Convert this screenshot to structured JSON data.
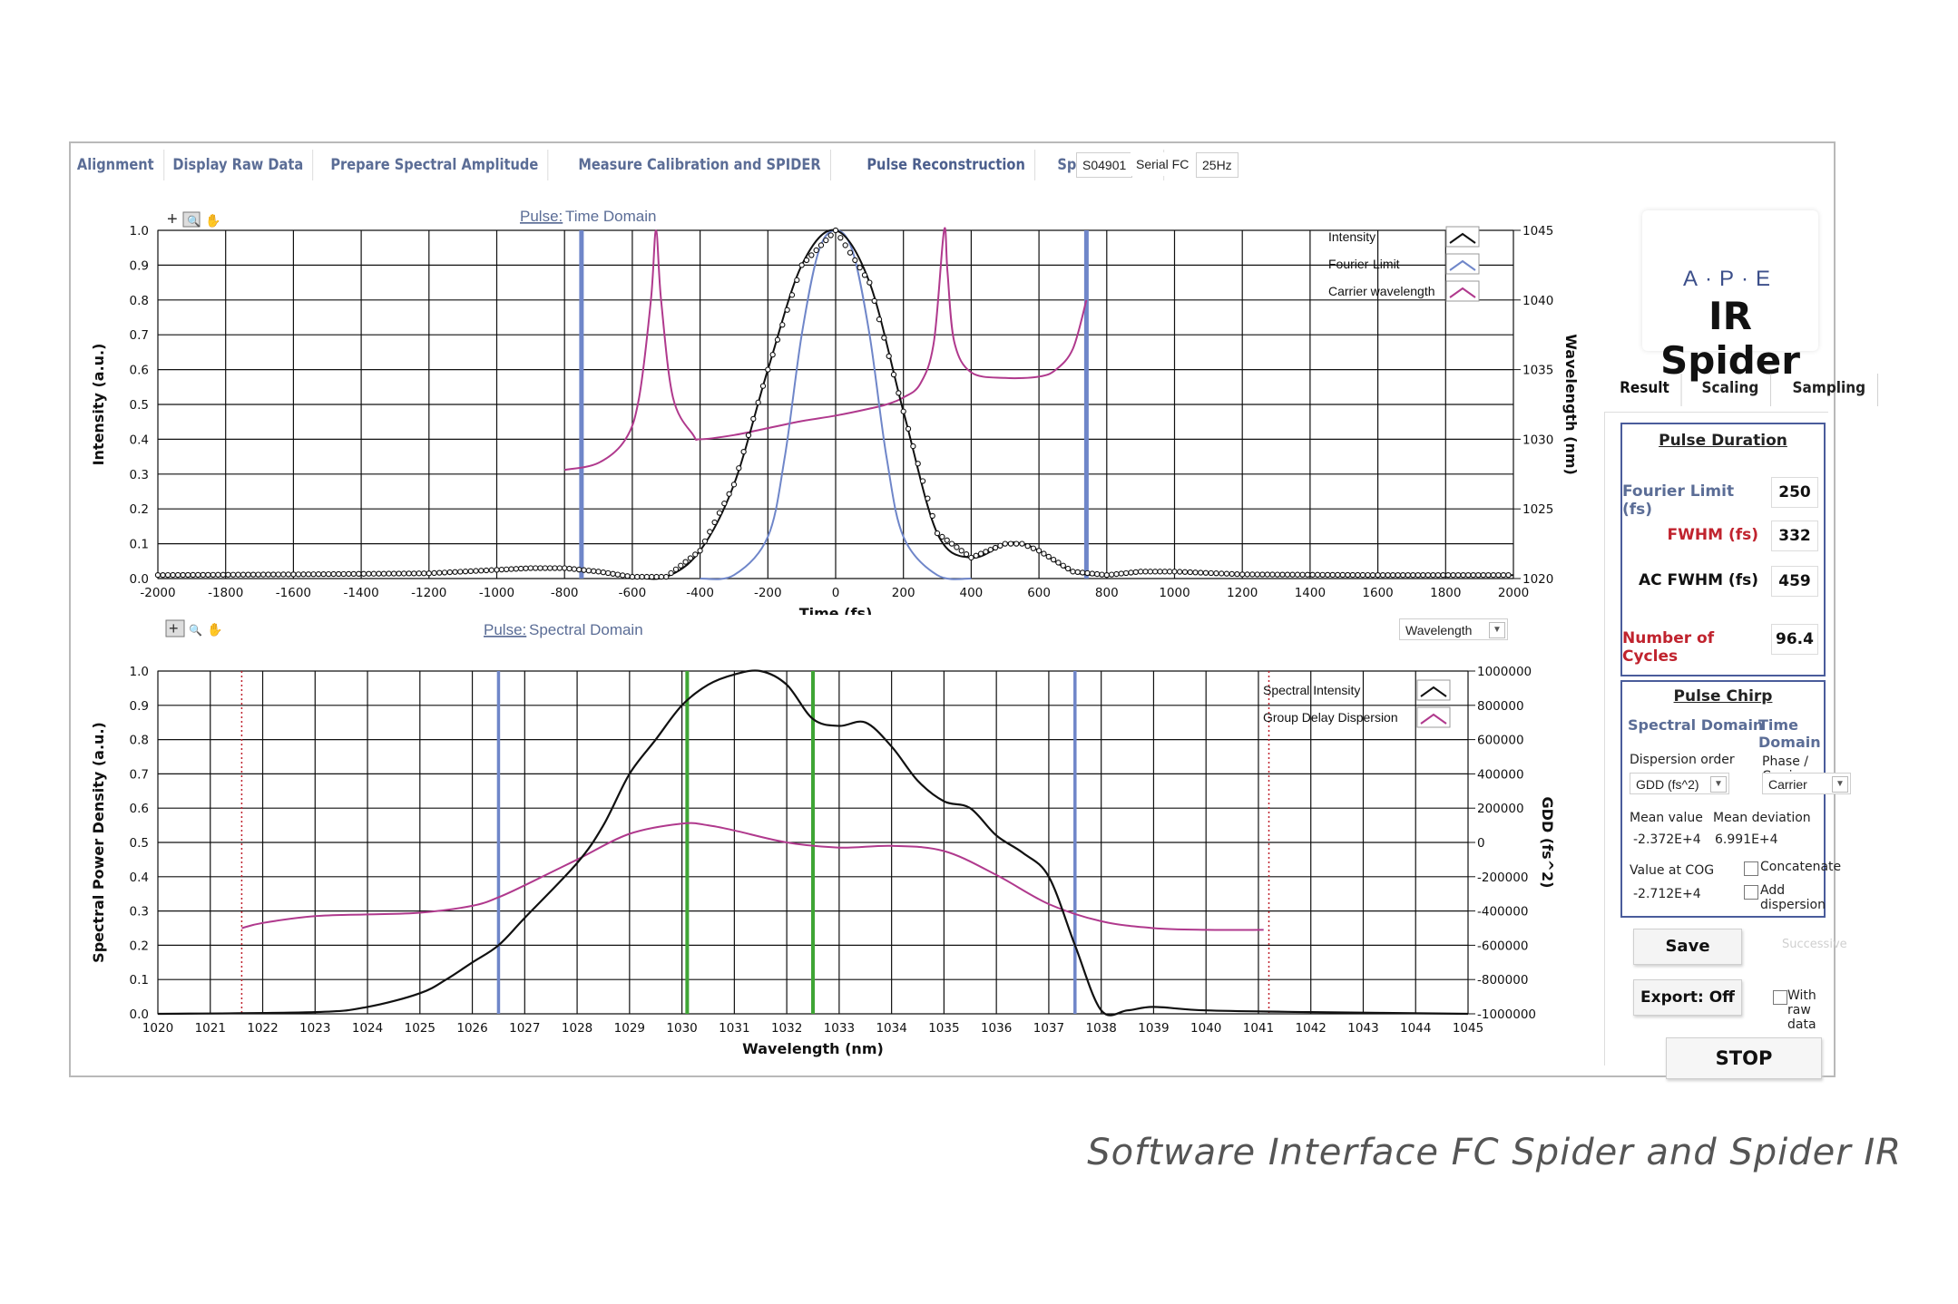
{
  "tabs": [
    "Alignment",
    "Display Raw Data",
    "Prepare Spectral Amplitude",
    "Measure Calibration and SPIDER",
    "Pulse Reconstruction",
    "Spectrogram"
  ],
  "device": {
    "serial": "S04901",
    "type": "Serial FC",
    "rate": "25Hz"
  },
  "colors": {
    "intensity": "#111111",
    "fourier": "#6f86c9",
    "carrier": "#b0398d",
    "gdd": "#b0398d",
    "green": "#3fa535",
    "blue_marker": "#6f86c9"
  },
  "chart_data": [
    {
      "type": "line",
      "title_prefix": "Pulse:",
      "title": "Time Domain",
      "xlabel": "Time (fs)",
      "ylabel": "Intensity (a.u.)",
      "y2label": "Wavelength (nm)",
      "xlim": [
        -2000,
        2000
      ],
      "ylim": [
        0,
        1.0
      ],
      "y2lim": [
        1020,
        1045
      ],
      "x_ticks": [
        -2000,
        -1800,
        -1600,
        -1400,
        -1200,
        -1000,
        -800,
        -600,
        -400,
        -200,
        0,
        200,
        400,
        600,
        800,
        1000,
        1200,
        1400,
        1600,
        1800,
        2000
      ],
      "y_ticks": [
        0.0,
        0.1,
        0.2,
        0.3,
        0.4,
        0.5,
        0.6,
        0.7,
        0.8,
        0.9,
        1.0
      ],
      "y2_ticks": [
        1020,
        1025,
        1030,
        1035,
        1040,
        1045
      ],
      "grid": true,
      "legend_position": "top-right",
      "markers_x": [
        -750,
        740
      ],
      "series": [
        {
          "name": "Intensity",
          "x": [
            -2000,
            -1600,
            -1200,
            -1000,
            -900,
            -800,
            -700,
            -600,
            -500,
            -400,
            -300,
            -200,
            -100,
            0,
            100,
            200,
            300,
            400,
            500,
            550,
            600,
            700,
            800,
            900,
            1000,
            1200,
            1600,
            2000
          ],
          "y": [
            0.01,
            0.012,
            0.015,
            0.025,
            0.03,
            0.03,
            0.02,
            0.005,
            0.005,
            0.08,
            0.27,
            0.6,
            0.9,
            1.0,
            0.85,
            0.48,
            0.13,
            0.06,
            0.1,
            0.1,
            0.08,
            0.02,
            0.01,
            0.02,
            0.02,
            0.012,
            0.01,
            0.01
          ]
        },
        {
          "name": "Fourier-Limit",
          "x": [
            -400,
            -300,
            -200,
            -150,
            -100,
            -50,
            0,
            50,
            100,
            150,
            200,
            300,
            400
          ],
          "y": [
            0.0,
            0.01,
            0.12,
            0.35,
            0.7,
            0.94,
            1.0,
            0.94,
            0.7,
            0.35,
            0.12,
            0.01,
            0.0
          ]
        },
        {
          "name": "Carrier wavelength",
          "x": [
            -800,
            -700,
            -620,
            -580,
            -545,
            -530,
            -515,
            -480,
            -420,
            -400,
            -300,
            -200,
            -100,
            0,
            100,
            150,
            200,
            250,
            290,
            320,
            330,
            350,
            400,
            500,
            600,
            650,
            700,
            740
          ],
          "y2": [
            1027.8,
            1028.3,
            1030,
            1033,
            1040,
            1045,
            1040,
            1033,
            1030.3,
            1030,
            1030.3,
            1030.8,
            1031.3,
            1031.7,
            1032.2,
            1032.5,
            1033,
            1034,
            1037,
            1045,
            1042,
            1037,
            1034.8,
            1034.4,
            1034.5,
            1035,
            1036.5,
            1040
          ]
        }
      ],
      "dropdown": "Wavelength"
    },
    {
      "type": "line",
      "title_prefix": "Pulse:",
      "title": "Spectral Domain",
      "xlabel": "Wavelength (nm)",
      "ylabel": "Spectral Power Density (a.u.)",
      "y2label": "GDD (fs^2)",
      "xlim": [
        1020,
        1045
      ],
      "ylim": [
        0,
        1.0
      ],
      "y2lim": [
        -1000000,
        1000000
      ],
      "x_ticks": [
        1020,
        1021,
        1022,
        1023,
        1024,
        1025,
        1026,
        1027,
        1028,
        1029,
        1030,
        1031,
        1032,
        1033,
        1034,
        1035,
        1036,
        1037,
        1038,
        1039,
        1040,
        1041,
        1042,
        1043,
        1044,
        1045
      ],
      "y_ticks": [
        0.0,
        0.1,
        0.2,
        0.3,
        0.4,
        0.5,
        0.6,
        0.7,
        0.8,
        0.9,
        1.0
      ],
      "y2_ticks": [
        -1000000,
        -800000,
        -600000,
        -400000,
        -200000,
        0,
        200000,
        400000,
        600000,
        800000,
        1000000
      ],
      "grid": true,
      "legend_position": "top-right",
      "markers_blue": [
        1026.5,
        1037.5
      ],
      "markers_green": [
        1030.1,
        1032.5
      ],
      "markers_dotted": [
        1021.6,
        1041.2
      ],
      "series": [
        {
          "name": "Spectral Intensity",
          "x": [
            1020,
            1023,
            1024,
            1025,
            1025.5,
            1026,
            1026.5,
            1027,
            1028,
            1028.5,
            1029,
            1029.5,
            1030,
            1030.5,
            1031,
            1031.5,
            1032,
            1032.5,
            1033,
            1033.5,
            1034,
            1034.5,
            1035,
            1035.5,
            1036,
            1036.5,
            1037,
            1037.5,
            1038,
            1038.5,
            1039,
            1040,
            1042,
            1045
          ],
          "y": [
            0.0,
            0.005,
            0.02,
            0.06,
            0.1,
            0.15,
            0.2,
            0.28,
            0.44,
            0.55,
            0.7,
            0.8,
            0.9,
            0.96,
            0.99,
            1.0,
            0.96,
            0.86,
            0.84,
            0.85,
            0.78,
            0.68,
            0.62,
            0.6,
            0.52,
            0.47,
            0.4,
            0.2,
            0.01,
            0.01,
            0.02,
            0.01,
            0.005,
            0.0
          ]
        },
        {
          "name": "Group Delay Dispersion",
          "x": [
            1021.6,
            1022,
            1023,
            1024,
            1025,
            1026,
            1026.5,
            1027,
            1028,
            1029,
            1030,
            1030.5,
            1031,
            1032,
            1033,
            1034,
            1035,
            1036,
            1037,
            1038,
            1039,
            1040,
            1041.1
          ],
          "y2": [
            -500000,
            -470000,
            -430000,
            -420000,
            -410000,
            -370000,
            -320000,
            -250000,
            -100000,
            50000,
            110000,
            100000,
            70000,
            0,
            -30000,
            -20000,
            -50000,
            -190000,
            -360000,
            -460000,
            -500000,
            -510000,
            -510000
          ]
        }
      ]
    }
  ],
  "logo": {
    "brand": "A·P·E",
    "product": "IR Spider"
  },
  "side_tabs": [
    "Result",
    "Scaling",
    "Sampling"
  ],
  "pulse_duration": {
    "title": "Pulse Duration",
    "rows": [
      {
        "label": "Fourier Limit (fs)",
        "value": "250",
        "color": "#5b6d96"
      },
      {
        "label": "FWHM (fs)",
        "value": "332",
        "color": "#c0232e"
      },
      {
        "label": "AC FWHM (fs)",
        "value": "459",
        "color": "#111111"
      },
      {
        "label": "Number of Cycles",
        "value": "96.4",
        "color": "#c0232e"
      }
    ]
  },
  "pulse_chirp": {
    "title": "Pulse Chirp",
    "spectral_domain": "Spectral Domain",
    "time_domain": "Time Domain",
    "dispersion_order_label": "Dispersion order",
    "dispersion_order_value": "GDD (fs^2)",
    "phase_label": "Phase / Carrier",
    "phase_value": "Carrier",
    "mean_value_label": "Mean value",
    "mean_value": "-2.372E+4",
    "mean_dev_label": "Mean deviation",
    "mean_dev": "6.991E+4",
    "cog_label": "Value at COG",
    "cog_value": "-2.712E+4",
    "concatenate": "Concatenate",
    "add_dispersion": "Add dispersion"
  },
  "buttons": {
    "save": "Save",
    "successive": "Successive",
    "export": "Export: Off",
    "with_raw": "With raw data",
    "stop": "STOP"
  },
  "caption": "Software Interface FC Spider and Spider IR"
}
